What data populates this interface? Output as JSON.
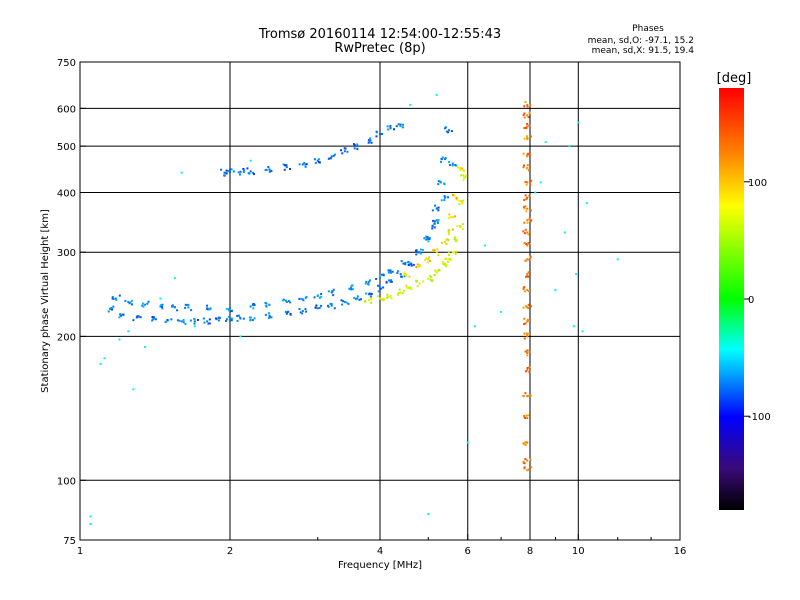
{
  "chart_data": {
    "type": "scatter",
    "title": "Tromsø 20160114 12:54:00-12:55:43",
    "subtitle": "RwPretec (8p)",
    "xlabel": "Frequency [MHz]",
    "ylabel": "Stationary phase Virtual Height [km]",
    "xscale": "log",
    "yscale": "log",
    "xlim": [
      1,
      16
    ],
    "ylim": [
      75,
      750
    ],
    "x_ticks": [
      1,
      2,
      4,
      6,
      8,
      10,
      16
    ],
    "y_ticks": [
      75,
      100,
      200,
      300,
      400,
      500,
      600,
      750
    ],
    "x_gridlines": [
      2,
      4,
      6,
      8,
      10
    ],
    "y_gridlines": [
      100,
      200,
      300,
      400,
      500,
      600
    ],
    "phase_stats": {
      "heading": "Phases",
      "line_o": "mean, sd,O: -97.1, 15.2",
      "line_x": "mean, sd,X:  91.5, 19.4"
    },
    "colorbar": {
      "label": "[deg]",
      "range": [
        -180,
        180
      ],
      "ticks": [
        100,
        0,
        -100
      ]
    },
    "series": [
      {
        "name": "O-trace lower branch",
        "color_phase": -100,
        "x": [
          1.16,
          1.22,
          1.3,
          1.4,
          1.5,
          1.6,
          1.7,
          1.8,
          1.9,
          2.0,
          2.1,
          2.2,
          2.4,
          2.6,
          2.8,
          3.0,
          3.2,
          3.4,
          3.6,
          3.8,
          4.0,
          4.2,
          4.4,
          4.6,
          4.8,
          5.0,
          5.1,
          5.2,
          5.3,
          5.4,
          5.5
        ],
        "y": [
          228,
          222,
          219,
          217,
          216,
          215,
          215,
          215,
          216,
          217,
          218,
          219,
          221,
          223,
          226,
          229,
          232,
          236,
          240,
          245,
          252,
          260,
          270,
          283,
          300,
          320,
          340,
          370,
          420,
          470,
          540
        ]
      },
      {
        "name": "O-trace upper branch",
        "color_phase": -95,
        "x": [
          1.18,
          1.25,
          1.35,
          1.45,
          1.55,
          1.65,
          1.8,
          2.0,
          2.2,
          2.4,
          2.6,
          2.8,
          3.0,
          3.2,
          3.5,
          3.8,
          4.0,
          4.2,
          4.5,
          4.8,
          5.0,
          5.2,
          5.4,
          5.6
        ],
        "y": [
          240,
          236,
          233,
          231,
          230,
          230,
          229,
          229,
          231,
          233,
          236,
          239,
          243,
          247,
          253,
          260,
          266,
          273,
          285,
          300,
          320,
          350,
          390,
          460
        ]
      },
      {
        "name": "High trace",
        "color_phase": -105,
        "x": [
          1.95,
          2.0,
          2.1,
          2.2,
          2.4,
          2.6,
          2.8,
          3.0,
          3.2,
          3.4,
          3.6,
          3.8,
          4.0,
          4.2,
          4.4
        ],
        "y": [
          440,
          441,
          442,
          443,
          447,
          452,
          458,
          466,
          476,
          488,
          500,
          515,
          530,
          545,
          555
        ]
      },
      {
        "name": "X-trace",
        "color_phase": 90,
        "x": [
          3.8,
          4.0,
          4.2,
          4.4,
          4.6,
          4.8,
          5.0,
          5.2,
          5.4,
          5.5,
          5.6,
          5.7,
          5.8,
          5.85,
          5.9
        ],
        "y": [
          238,
          240,
          243,
          247,
          252,
          258,
          264,
          272,
          282,
          290,
          300,
          318,
          340,
          380,
          430
        ]
      },
      {
        "name": "X-trace upper",
        "color_phase": 110,
        "x": [
          4.5,
          4.8,
          5.0,
          5.2,
          5.4,
          5.5,
          5.6,
          5.7,
          5.8
        ],
        "y": [
          270,
          280,
          290,
          300,
          315,
          330,
          355,
          390,
          450
        ]
      },
      {
        "name": "Interference 8 MHz",
        "color_phase": 140,
        "x": [
          7.9,
          7.9,
          7.9,
          7.9,
          7.9,
          7.9,
          7.9,
          7.9,
          7.9,
          7.9,
          7.9,
          7.9,
          7.9,
          7.9,
          7.9,
          7.9,
          7.9,
          7.9,
          7.9,
          7.9,
          7.9,
          7.9,
          7.9,
          7.9,
          7.9
        ],
        "y": [
          610,
          580,
          550,
          520,
          480,
          450,
          420,
          390,
          370,
          350,
          330,
          310,
          290,
          270,
          250,
          230,
          215,
          200,
          185,
          170,
          150,
          135,
          120,
          110,
          105
        ]
      },
      {
        "name": "Scattered",
        "color_phase": -60,
        "x": [
          1.05,
          1.05,
          1.1,
          1.12,
          1.2,
          1.25,
          1.28,
          1.35,
          1.45,
          1.55,
          1.6,
          1.7,
          2.1,
          2.2,
          4.6,
          5.0,
          5.2,
          6.0,
          6.2,
          6.5,
          7.0,
          8.2,
          8.4,
          8.6,
          9.0,
          9.4,
          9.6,
          9.8,
          9.9,
          10.0,
          10.2,
          10.4,
          12.0
        ],
        "y": [
          84,
          81,
          175,
          180,
          197,
          205,
          155,
          190,
          240,
          265,
          440,
          210,
          200,
          466,
          610,
          85,
          640,
          120,
          210,
          310,
          225,
          400,
          420,
          510,
          250,
          330,
          500,
          210,
          270,
          560,
          205,
          380,
          290
        ]
      }
    ]
  }
}
